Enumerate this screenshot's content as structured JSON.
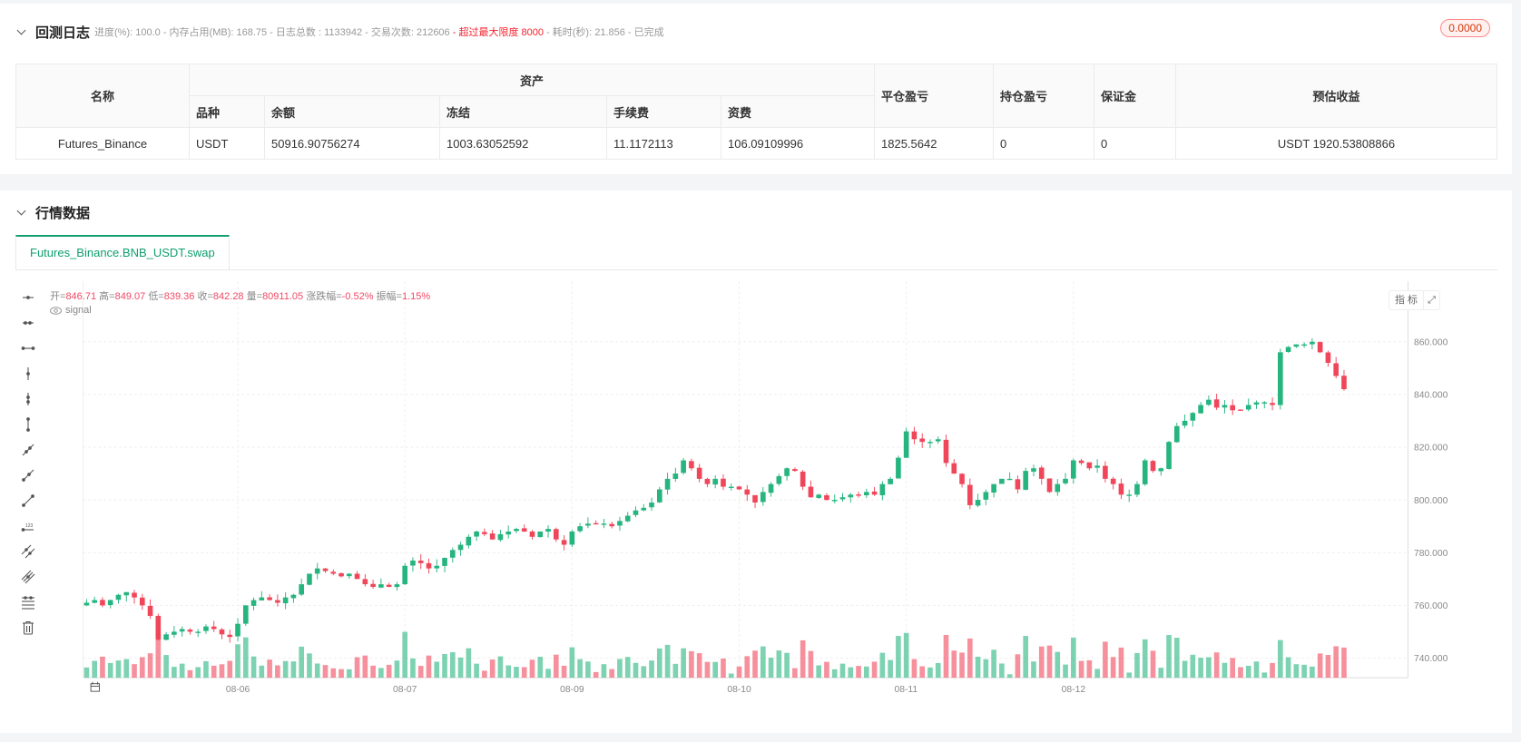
{
  "log_panel": {
    "title": "回测日志",
    "stats": [
      {
        "text": "进度(%): 100.0",
        "warn": false
      },
      {
        "text": " - 内存占用(MB): 168.75",
        "warn": false
      },
      {
        "text": " - 日志总数 : 1133942",
        "warn": false
      },
      {
        "text": " - 交易次数:  212606",
        "warn": false
      },
      {
        "text": " - 超过最大限度 8000",
        "warn": true
      },
      {
        "text": " - 耗时(秒): 21.856",
        "warn": false
      },
      {
        "text": " - 已完成",
        "warn": false
      }
    ],
    "badge": "0.0000",
    "table": {
      "header_name": "名称",
      "header_asset_group": "资产",
      "header_asset_cols": [
        "品种",
        "余额",
        "冻结",
        "手续费",
        "资费"
      ],
      "header_close_pnl": "平仓盈亏",
      "header_pos_pnl": "持仓盈亏",
      "header_margin": "保证金",
      "header_est": "预估收益",
      "rows": [
        {
          "name": "Futures_Binance",
          "currency": "USDT",
          "balance": "50916.90756274",
          "frozen": "1003.63052592",
          "fee": "11.1172113",
          "funding": "106.09109996",
          "close_pnl": "1825.5642",
          "pos_pnl": "0",
          "margin": "0",
          "est": "USDT 1920.53808866"
        }
      ]
    }
  },
  "market_panel": {
    "title": "行情数据",
    "tab": "Futures_Binance.BNB_USDT.swap",
    "legend": {
      "open_label": "开=",
      "open": "846.71",
      "high_label": " 高=",
      "high": "849.07",
      "low_label": " 低=",
      "low": "839.36",
      "close_label": " 收=",
      "close": "842.28",
      "vol_label": " 量=",
      "vol": "80911.05",
      "chg_label": " 涨跌幅=",
      "chg": "-0.52%",
      "amp_label": " 振幅=",
      "amp": "1.15%"
    },
    "signal_label": "signal",
    "indicator_button": "指 标",
    "tools": [
      "horizontal-ray-icon",
      "horizontal-segment-icon",
      "horizontal-line-icon",
      "vertical-ray-icon",
      "vertical-segment-icon",
      "vertical-line-icon",
      "trend-ray-icon",
      "trend-segment-icon",
      "trend-line-icon",
      "price-line-icon",
      "parallel-channel-icon",
      "multi-line-icon",
      "fibonacci-icon",
      "delete-icon"
    ]
  },
  "colors": {
    "up": "#26b47f",
    "down": "#f0465a",
    "accent": "#13a06f",
    "warn": "#f5222d"
  },
  "chart_data": {
    "type": "candlestick",
    "symbol": "Futures_Binance.BNB_USDT.swap",
    "y_ticks": [
      740,
      760,
      780,
      800,
      820,
      840,
      860
    ],
    "y_tick_format": "0.000",
    "ylim": [
      734,
      874
    ],
    "x_labels": [
      {
        "label": "08-06",
        "index": 19
      },
      {
        "label": "08-07",
        "index": 40
      },
      {
        "label": "08-09",
        "index": 61
      },
      {
        "label": "08-10",
        "index": 82
      },
      {
        "label": "08-11",
        "index": 103
      },
      {
        "label": "08-12",
        "index": 124
      }
    ],
    "closes": [
      761,
      762,
      760,
      762,
      764,
      765,
      763,
      760,
      756,
      747,
      749,
      750,
      751,
      750,
      750,
      752,
      751,
      749,
      748,
      753,
      760,
      762,
      763,
      762,
      761,
      763,
      764,
      768,
      772,
      774,
      773,
      772,
      771,
      772,
      770,
      768,
      767,
      768,
      767,
      768,
      775,
      777,
      776,
      774,
      775,
      778,
      781,
      783,
      786,
      788,
      787,
      785,
      787,
      788,
      789,
      788,
      786,
      788,
      789,
      785,
      783,
      788,
      790,
      791,
      791,
      791,
      790,
      792,
      794,
      796,
      797,
      799,
      804,
      808,
      810,
      815,
      812,
      808,
      806,
      808,
      805,
      805,
      804,
      802,
      799,
      803,
      806,
      809,
      812,
      811,
      805,
      801,
      802,
      800,
      800,
      801,
      802,
      802,
      803,
      802,
      806,
      808,
      816,
      826,
      823,
      822,
      822,
      823,
      814,
      810,
      806,
      798,
      800,
      803,
      806,
      808,
      808,
      804,
      811,
      812,
      808,
      803,
      806,
      808,
      815,
      814,
      812,
      813,
      808,
      806,
      802,
      802,
      806,
      815,
      811,
      812,
      822,
      828,
      830,
      833,
      836,
      838,
      835,
      836,
      834,
      834,
      836,
      837,
      837,
      836,
      856,
      858,
      859,
      859,
      860,
      856,
      852,
      847,
      842
    ],
    "volume_note": "volume bars shown beneath candles, green for up, red for down"
  }
}
